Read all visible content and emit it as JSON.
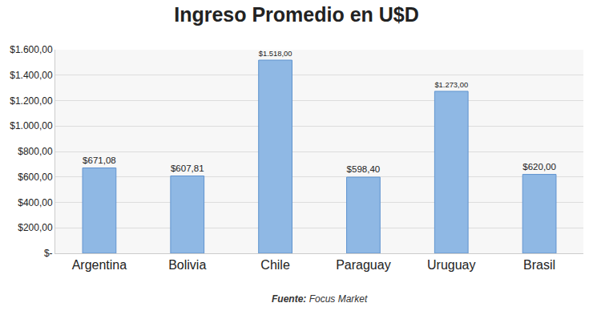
{
  "chart_data": {
    "type": "bar",
    "title": "Ingreso Promedio en U$D",
    "source": "Fuente: Focus Market",
    "categories": [
      "Argentina",
      "Bolivia",
      "Chile",
      "Paraguay",
      "Uruguay",
      "Brasil"
    ],
    "values": [
      671.08,
      607.81,
      1518,
      598.4,
      1273,
      620
    ],
    "value_labels": [
      "$671,08",
      "$607,81",
      "$1.518,00",
      "$598,40",
      "$1.273,00",
      "$620,00"
    ],
    "data_labels": true,
    "color": "#8fb8e4",
    "ylim": [
      0,
      1600
    ],
    "yticks": [
      {
        "value": 0,
        "label": "$-"
      },
      {
        "value": 200,
        "label": "$200,00"
      },
      {
        "value": 400,
        "label": "$400,00"
      },
      {
        "value": 600,
        "label": "$600,00"
      },
      {
        "value": 800,
        "label": "$800,00"
      },
      {
        "value": 1000,
        "label": "$1.000,00"
      },
      {
        "value": 1200,
        "label": "$1.200,00"
      },
      {
        "value": 1400,
        "label": "$1.400,00"
      },
      {
        "value": 1600,
        "label": "$1.600,00"
      }
    ],
    "grid": true
  }
}
